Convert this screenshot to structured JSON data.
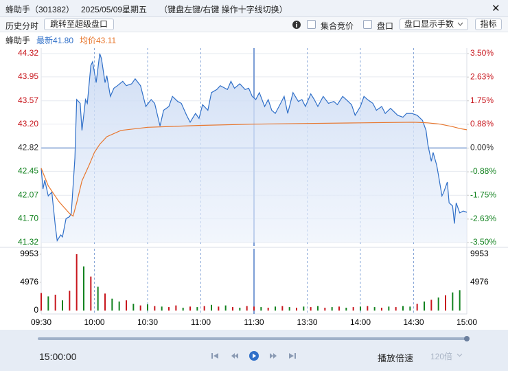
{
  "header": {
    "title": "蜂助手（301382）",
    "date": "2025/05/09星期五",
    "hint": "（键盘左键/右键 操作十字线切换）",
    "close": "✕"
  },
  "toolbar": {
    "history": "历史分时",
    "jump": "跳转至超级盘口",
    "auction": "集合竞价",
    "orderbook": "盘口",
    "display": "盘口显示手数",
    "indicator": "指标"
  },
  "info": {
    "name": "蜂助手",
    "latest": "最新41.80",
    "average": "均价43.11"
  },
  "chart_data": [
    {
      "type": "line",
      "xlim": [
        0,
        240
      ],
      "ylim": [
        41.32,
        44.32
      ],
      "y2lim": [
        -3.5,
        3.5
      ],
      "yticks": [
        {
          "value": 41.32,
          "label": "41.32"
        },
        {
          "value": 41.7,
          "label": "41.70"
        },
        {
          "value": 42.07,
          "label": "42.07"
        },
        {
          "value": 42.45,
          "label": "42.45"
        },
        {
          "value": 42.82,
          "label": "42.82"
        },
        {
          "value": 43.2,
          "label": "43.20"
        },
        {
          "value": 43.57,
          "label": "43.57"
        },
        {
          "value": 43.95,
          "label": "43.95"
        },
        {
          "value": 44.32,
          "label": "44.32"
        }
      ],
      "y2ticks": [
        {
          "value": -3.5,
          "label": "-3.50%"
        },
        {
          "value": -2.63,
          "label": "-2.63%"
        },
        {
          "value": -1.75,
          "label": "-1.75%"
        },
        {
          "value": -0.88,
          "label": "-0.88%"
        },
        {
          "value": 0,
          "label": "0.00%"
        },
        {
          "value": 0.88,
          "label": "0.88%"
        },
        {
          "value": 1.75,
          "label": "1.75%"
        },
        {
          "value": 2.63,
          "label": "2.63%"
        },
        {
          "value": 3.5,
          "label": "3.50%"
        }
      ],
      "xticks": [
        {
          "value": 0,
          "label": "09:30"
        },
        {
          "value": 30,
          "label": "10:00"
        },
        {
          "value": 60,
          "label": "10:30"
        },
        {
          "value": 90,
          "label": "11:00"
        },
        {
          "value": 120,
          "label": "11:30"
        },
        {
          "value": 150,
          "label": "13:30"
        },
        {
          "value": 180,
          "label": "14:00"
        },
        {
          "value": 210,
          "label": "14:30"
        },
        {
          "value": 240,
          "label": "15:00"
        }
      ],
      "up_color": "#c8161d",
      "down_color": "#12821f",
      "series": [
        {
          "color": "#2f6fc8",
          "x": [
            0,
            1,
            2,
            4,
            6,
            8,
            9,
            11,
            12,
            14,
            16,
            17,
            19,
            20,
            22,
            23,
            25,
            26,
            28,
            29,
            31,
            33,
            34,
            36,
            37,
            39,
            41,
            43,
            46,
            48,
            51,
            53,
            56,
            59,
            62,
            64,
            67,
            69,
            72,
            74,
            77,
            79,
            82,
            84,
            87,
            89,
            91,
            94,
            96,
            99,
            101,
            105,
            107,
            109,
            112,
            115,
            117,
            119,
            121,
            123,
            126,
            128,
            130,
            132,
            135,
            137,
            139,
            142,
            145,
            147,
            149,
            152,
            154,
            156,
            159,
            162,
            165,
            167,
            170,
            172,
            175,
            177,
            180,
            182,
            184,
            187,
            189,
            192,
            194,
            197,
            201,
            204,
            206,
            209,
            212,
            215,
            217,
            218,
            220,
            221,
            223,
            224,
            226,
            227,
            229,
            230,
            232,
            233,
            234,
            236,
            238,
            240
          ],
          "values": [
            42.5,
            42.17,
            42.31,
            42.06,
            42.12,
            41.57,
            41.35,
            41.44,
            41.41,
            41.7,
            41.73,
            41.79,
            42.66,
            43.59,
            43.53,
            43.1,
            43.59,
            43.53,
            44.13,
            44.19,
            43.86,
            44.32,
            44.24,
            43.86,
            43.97,
            43.64,
            43.77,
            43.81,
            43.88,
            43.81,
            43.84,
            43.92,
            43.81,
            43.48,
            43.59,
            43.53,
            43.17,
            43.42,
            43.48,
            43.64,
            43.56,
            43.53,
            43.34,
            43.23,
            43.37,
            43.29,
            43.51,
            43.42,
            43.7,
            43.75,
            43.81,
            43.75,
            43.88,
            43.77,
            43.84,
            43.75,
            43.77,
            43.64,
            43.59,
            43.7,
            43.48,
            43.59,
            43.42,
            43.37,
            43.53,
            43.64,
            43.37,
            43.7,
            43.56,
            43.59,
            43.48,
            43.68,
            43.59,
            43.48,
            43.64,
            43.53,
            43.56,
            43.51,
            43.64,
            43.59,
            43.51,
            43.34,
            43.48,
            43.64,
            43.59,
            43.53,
            43.42,
            43.48,
            43.37,
            43.45,
            43.34,
            43.31,
            43.37,
            43.37,
            43.34,
            43.26,
            43.1,
            42.88,
            42.61,
            42.75,
            42.55,
            42.39,
            42.06,
            42.12,
            42.28,
            41.95,
            41.9,
            41.62,
            41.95,
            41.79,
            41.82,
            41.8
          ]
        },
        {
          "color": "#e8772e",
          "x": [
            0,
            4,
            10,
            16,
            18,
            20,
            23,
            27,
            30,
            33,
            37,
            45,
            60,
            90,
            120,
            150,
            180,
            210,
            218,
            225,
            232,
            236,
            240
          ],
          "values": [
            42.5,
            42.22,
            41.97,
            41.78,
            41.74,
            41.95,
            42.3,
            42.55,
            42.75,
            42.88,
            43.0,
            43.1,
            43.15,
            43.18,
            43.2,
            43.21,
            43.22,
            43.23,
            43.22,
            43.2,
            43.16,
            43.13,
            43.11
          ]
        }
      ]
    },
    {
      "type": "bar",
      "xlim": [
        0,
        240
      ],
      "ylim": [
        0,
        9953
      ],
      "yticks": [
        0,
        4976,
        9953
      ],
      "x": [
        0,
        4,
        8,
        12,
        16,
        20,
        24,
        28,
        32,
        36,
        40,
        44,
        48,
        52,
        56,
        60,
        64,
        68,
        72,
        76,
        80,
        84,
        88,
        92,
        96,
        100,
        104,
        108,
        112,
        116,
        120,
        124,
        128,
        132,
        136,
        140,
        144,
        148,
        152,
        156,
        160,
        164,
        168,
        172,
        176,
        180,
        184,
        188,
        192,
        196,
        200,
        204,
        208,
        212,
        216,
        220,
        224,
        228,
        232,
        236
      ],
      "values": [
        3100,
        2500,
        2800,
        1800,
        3500,
        9953,
        7800,
        6000,
        4200,
        3000,
        2100,
        1600,
        1800,
        1200,
        900,
        1100,
        800,
        700,
        600,
        900,
        500,
        700,
        600,
        800,
        1000,
        700,
        900,
        600,
        500,
        800,
        700,
        600,
        500,
        700,
        800,
        600,
        500,
        700,
        600,
        800,
        500,
        600,
        700,
        500,
        600,
        700,
        800,
        600,
        500,
        700,
        600,
        800,
        700,
        1200,
        1600,
        1900,
        2300,
        2700,
        3200,
        3600
      ],
      "colors": [
        "#c8161d",
        "#12821f",
        "#c8161d",
        "#12821f",
        "#c8161d",
        "#c8161d",
        "#12821f",
        "#c8161d",
        "#12821f",
        "#c8161d",
        "#12821f",
        "#12821f",
        "#c8161d",
        "#12821f",
        "#c8161d",
        "#12821f",
        "#c8161d",
        "#12821f",
        "#c8161d",
        "#c8161d",
        "#12821f",
        "#c8161d",
        "#12821f",
        "#c8161d",
        "#12821f",
        "#c8161d",
        "#12821f",
        "#c8161d",
        "#12821f",
        "#c8161d",
        "#c8161d",
        "#12821f",
        "#c8161d",
        "#12821f",
        "#c8161d",
        "#12821f",
        "#c8161d",
        "#12821f",
        "#c8161d",
        "#12821f",
        "#c8161d",
        "#12821f",
        "#c8161d",
        "#12821f",
        "#c8161d",
        "#12821f",
        "#c8161d",
        "#12821f",
        "#c8161d",
        "#12821f",
        "#c8161d",
        "#12821f",
        "#12821f",
        "#c8161d",
        "#12821f",
        "#c8161d",
        "#12821f",
        "#c8161d",
        "#12821f",
        "#12821f"
      ]
    }
  ],
  "playback": {
    "time": "15:00:00",
    "speed_label": "播放倍速",
    "speed": "120倍"
  }
}
